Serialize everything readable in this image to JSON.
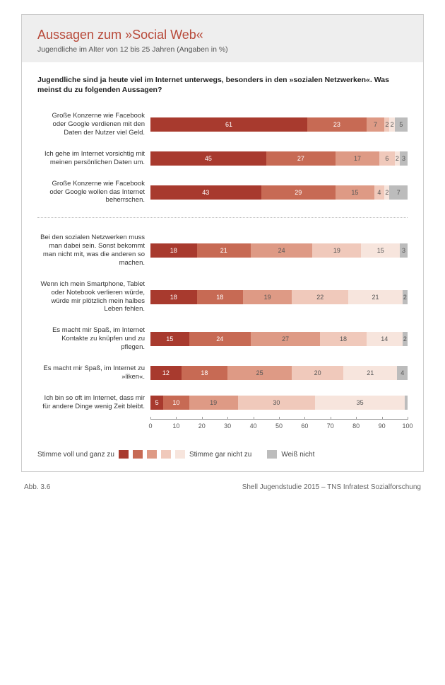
{
  "title": "Aussagen zum »Social Web«",
  "subtitle": "Jugendliche im Alter von 12 bis 25 Jahren (Angaben in %)",
  "question": "Jugendliche sind ja heute viel im Internet unterwegs, besonders in den »sozialen Netzwerken«. Was meinst du zu folgenden Aussagen?",
  "colors": {
    "c1": "#a83a2e",
    "c2": "#c76a54",
    "c3": "#de9a85",
    "c4": "#f0c9bb",
    "c5": "#f7e5dd",
    "c6": "#bcbcbc",
    "panel_bg": "#ffffff",
    "header_bg": "#eeeeee",
    "title_color": "#b84a3a",
    "border": "#cccccc"
  },
  "legend": {
    "agree": "Stimme voll und ganz zu",
    "disagree": "Stimme gar nicht zu",
    "dk": "Weiß nicht"
  },
  "axis": {
    "min": 0,
    "max": 100,
    "ticks": [
      0,
      10,
      20,
      30,
      40,
      50,
      60,
      70,
      80,
      90,
      100
    ]
  },
  "group1": [
    {
      "label": "Große Konzerne wie Facebook oder Google verdienen mit den Daten der Nutzer viel Geld.",
      "values": [
        61,
        23,
        7,
        2,
        2,
        5
      ]
    },
    {
      "label": "Ich gehe im Internet vorsichtig mit meinen persönlichen Daten um.",
      "values": [
        45,
        27,
        17,
        6,
        2,
        3
      ]
    },
    {
      "label": "Große Konzerne wie Facebook oder Google wollen das Internet beherrschen.",
      "values": [
        43,
        29,
        15,
        4,
        2,
        7
      ]
    }
  ],
  "group2": [
    {
      "label": "Bei den sozialen Netzwerken muss man dabei sein. Sonst bekommt man nicht mit, was die anderen so machen.",
      "values": [
        18,
        21,
        24,
        19,
        15,
        3
      ]
    },
    {
      "label": "Wenn ich mein Smartphone, Tablet oder Notebook verlieren würde, würde mir plötzlich mein halbes Leben fehlen.",
      "values": [
        18,
        18,
        19,
        22,
        21,
        2
      ]
    },
    {
      "label": "Es macht mir Spaß, im Internet Kontakte zu knüpfen und zu pflegen.",
      "values": [
        15,
        24,
        27,
        18,
        14,
        2
      ]
    },
    {
      "label": "Es macht mir Spaß, im Internet zu »liken«.",
      "values": [
        12,
        18,
        25,
        20,
        21,
        4
      ]
    },
    {
      "label": "Ich bin so oft im Internet, dass mir für andere Dinge wenig Zeit bleibt.",
      "values": [
        5,
        10,
        19,
        30,
        35,
        1
      ]
    }
  ],
  "footer": {
    "left": "Abb. 3.6",
    "right": "Shell Jugendstudie 2015 – TNS Infratest Sozialforschung"
  }
}
